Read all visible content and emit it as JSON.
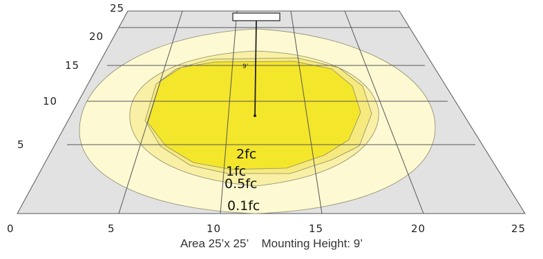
{
  "x_axis_ticks": [
    "0",
    "5",
    "10",
    "15",
    "20",
    "25"
  ],
  "y_axis_ticks": [
    "5",
    "10",
    "15",
    "20",
    "25"
  ],
  "contours": [
    {
      "label": "0.1fc",
      "color": "#fdf9d2"
    },
    {
      "label": "0.5fc",
      "color": "#f9f0a6"
    },
    {
      "label": "1fc",
      "color": "#f6ea7e"
    },
    {
      "label": "2fc",
      "color": "#f4e62b"
    }
  ],
  "mounting_height_label": "9’",
  "caption": "Area 25’x 25’    Mounting Height: 9’",
  "colors": {
    "floor": "#e2e2e2",
    "grid_line": "#555555",
    "fixture_pole": "#222222"
  }
}
